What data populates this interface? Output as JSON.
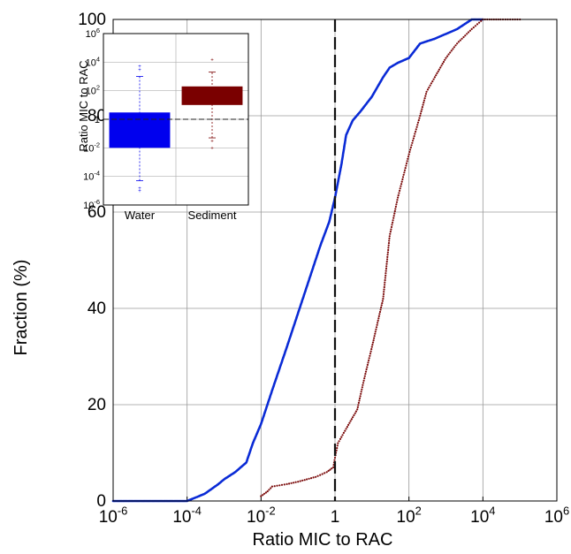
{
  "chart_data": [
    {
      "type": "line",
      "title": "",
      "xlabel": "Ratio MIC to RAC",
      "ylabel": "Fraction (%)",
      "x_scale": "log10",
      "xlim": [
        1e-06,
        1000000.0
      ],
      "ylim": [
        0,
        100
      ],
      "x_ticks": [
        {
          "base": "10",
          "exp": "-6"
        },
        {
          "base": "10",
          "exp": "-4"
        },
        {
          "base": "10",
          "exp": "-2"
        },
        {
          "base": "1",
          "exp": ""
        },
        {
          "base": "10",
          "exp": "2"
        },
        {
          "base": "10",
          "exp": "4"
        },
        {
          "base": "10",
          "exp": "6"
        }
      ],
      "y_ticks": [
        "0",
        "20",
        "40",
        "60",
        "80",
        "100"
      ],
      "grid": true,
      "reference_line_x": 1,
      "series": [
        {
          "color": "#0a2bd6",
          "style": "dotted-dense",
          "x": [
            1e-06,
            5e-06,
            0.0001,
            0.0003,
            0.0007,
            0.001,
            0.002,
            0.004,
            0.006,
            0.01,
            0.02,
            0.05,
            0.1,
            0.2,
            0.4,
            0.7,
            1,
            1.5,
            2,
            3,
            5,
            10,
            20,
            30,
            50,
            100,
            200,
            500,
            1000,
            2000,
            5000,
            10000
          ],
          "y": [
            0,
            0,
            0,
            1.5,
            3.5,
            4.5,
            6,
            8,
            12,
            16,
            23,
            32,
            39,
            46,
            53,
            58,
            63,
            70,
            76,
            79,
            81,
            84,
            88,
            90,
            91,
            92,
            95,
            96,
            97,
            98,
            100,
            100
          ]
        },
        {
          "color": "#7a0a0a",
          "style": "dotted-sparse",
          "x": [
            0.01,
            0.015,
            0.02,
            0.05,
            0.1,
            0.3,
            0.6,
            0.9,
            1,
            1.2,
            2,
            4,
            6,
            10,
            20,
            30,
            50,
            100,
            200,
            300,
            500,
            1000,
            2000,
            5000,
            10000,
            30000,
            100000
          ],
          "y": [
            1,
            2,
            3,
            3.5,
            4,
            5,
            6,
            7,
            9,
            12,
            15,
            19,
            25,
            32,
            42,
            55,
            63,
            72,
            80,
            85,
            88,
            92,
            95,
            98,
            100,
            100,
            100
          ]
        }
      ]
    },
    {
      "type": "box",
      "title": "",
      "xlabel": "",
      "ylabel": "Ratio MIC to RAC",
      "y_scale": "log10",
      "ylim": [
        1e-06,
        1000000.0
      ],
      "y_ticks": [
        {
          "base": "10",
          "exp": "6"
        },
        {
          "base": "10",
          "exp": "4"
        },
        {
          "base": "10",
          "exp": "2"
        },
        {
          "base": "1",
          "exp": ""
        },
        {
          "base": "10",
          "exp": "-2"
        },
        {
          "base": "10",
          "exp": "-4"
        },
        {
          "base": "10",
          "exp": "-6"
        }
      ],
      "reference_line_y": 1,
      "categories": [
        "Water",
        "Sediment"
      ],
      "colors": [
        "#0000ee",
        "#7a0000"
      ],
      "boxes": [
        {
          "q1": 0.01,
          "q3": 3,
          "whisker_low": 5e-05,
          "whisker_high": 1000,
          "outliers": [
            1e-05,
            1.5e-05,
            3000,
            5000
          ]
        },
        {
          "q1": 10,
          "q3": 200,
          "whisker_low": 0.05,
          "whisker_high": 2000,
          "outliers": [
            0.01,
            0.03,
            15000
          ]
        }
      ]
    }
  ]
}
